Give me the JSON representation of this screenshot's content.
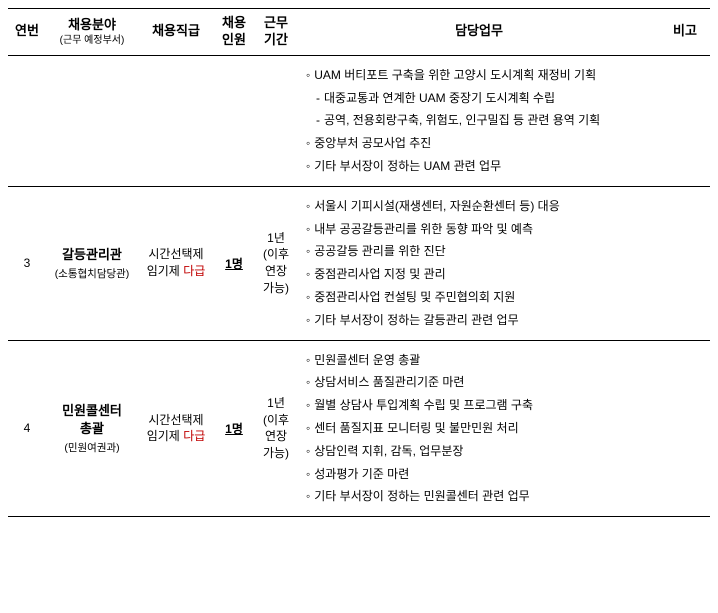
{
  "headers": {
    "no": "연번",
    "field": "채용분야",
    "field_sub": "(근무 예정부서)",
    "position": "채용직급",
    "count": "채용\n인원",
    "period": "근무\n기간",
    "tasks": "담당업무",
    "note": "비고"
  },
  "topTasks": {
    "items": [
      {
        "type": "task",
        "text": "UAM 버티포트 구축을 위한 고양시 도시계획 재정비 기획"
      },
      {
        "type": "sub",
        "text": "대중교통과 연계한 UAM 중장기 도시계획 수립"
      },
      {
        "type": "sub",
        "text": "공역, 전용회랑구축, 위험도, 인구밀집 등 관련 용역 기획"
      },
      {
        "type": "task",
        "text": "중앙부처 공모사업 추진"
      },
      {
        "type": "task",
        "text": "기타 부서장이 정하는 UAM 관련 업무"
      }
    ]
  },
  "rows": [
    {
      "no": "3",
      "field": "갈등관리관",
      "dept": "(소통협치담당관)",
      "pos_line1": "시간선택제",
      "pos_line2_a": "임기제 ",
      "pos_line2_b": "다급",
      "count": "1명",
      "period": "1년\n(이후\n연장\n가능)",
      "tasks": [
        {
          "type": "task",
          "text": "서울시 기피시설(재생센터, 자원순환센터 등) 대응"
        },
        {
          "type": "task",
          "text": "내부 공공갈등관리를 위한 동향 파악 및 예측"
        },
        {
          "type": "task",
          "text": "공공갈등 관리를 위한 진단"
        },
        {
          "type": "task",
          "text": "중점관리사업 지정 및 관리"
        },
        {
          "type": "task",
          "text": "중점관리사업 컨설팅 및 주민협의회 지원"
        },
        {
          "type": "task",
          "text": "기타 부서장이 정하는 갈등관리 관련 업무"
        }
      ]
    },
    {
      "no": "4",
      "field": "민원콜센터\n총괄",
      "dept": "(민원여권과)",
      "pos_line1": "시간선택제",
      "pos_line2_a": "임기제 ",
      "pos_line2_b": "다급",
      "count": "1명",
      "period": "1년\n(이후\n연장\n가능)",
      "tasks": [
        {
          "type": "task",
          "text": "민원콜센터 운영 총괄"
        },
        {
          "type": "task",
          "text": "상담서비스 품질관리기준 마련"
        },
        {
          "type": "task",
          "text": "월별 상담사 투입계획 수립 및 프로그램 구축"
        },
        {
          "type": "task",
          "text": "센터 품질지표 모니터링 및 불만민원 처리"
        },
        {
          "type": "task",
          "text": "상담인력 지휘, 감독, 업무분장"
        },
        {
          "type": "task",
          "text": "성과평가 기준 마련"
        },
        {
          "type": "task",
          "text": "기타 부서장이 정하는 민원콜센터 관련 업무"
        }
      ]
    }
  ],
  "bullets": {
    "circle": "◦",
    "dash": "-"
  },
  "colors": {
    "grade": "#c00000"
  }
}
